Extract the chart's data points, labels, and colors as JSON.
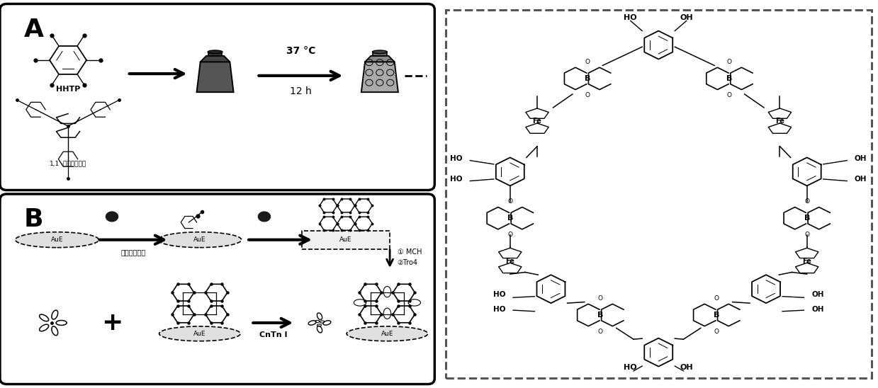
{
  "fig_width": 12.39,
  "fig_height": 5.48,
  "bg_color": "#ffffff",
  "section_A_label": "A",
  "section_B_label": "B",
  "hhtp_label": "HHTP",
  "ferrocene_label": "1,1’-二硒酸二茂鐵",
  "temp_label": "37 °C",
  "time_label": "12 h",
  "step1_label": "对硫基苯硒酸",
  "aue_label": "AuE",
  "mch_label": "① MCH",
  "tro4_label": "②Tro4",
  "cntn_label": "CnTn I",
  "fe_label": "Fe",
  "b_label": "B",
  "ho_label": "HO",
  "oh_label": "OH"
}
